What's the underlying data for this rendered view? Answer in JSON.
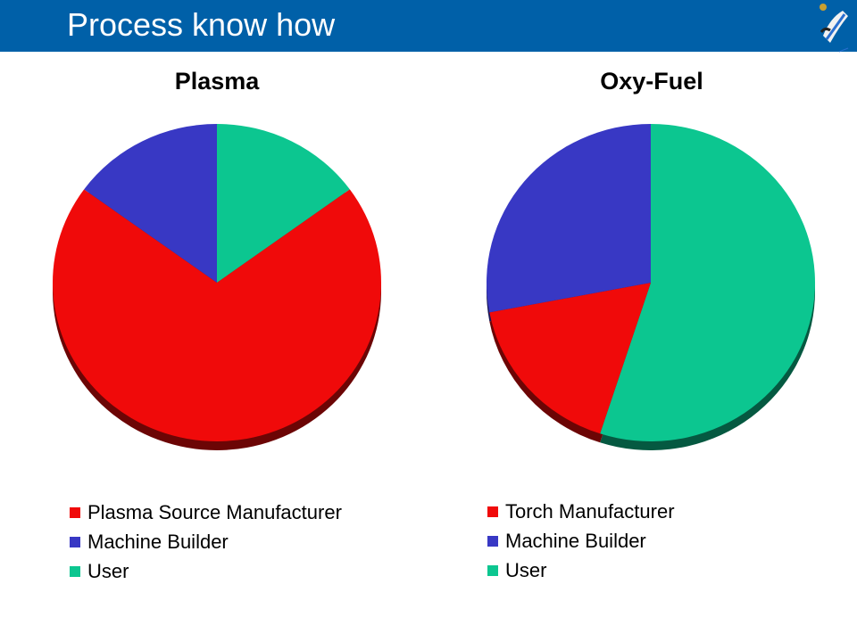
{
  "header": {
    "title": "Process know how",
    "logo": "welding-robot-logo"
  },
  "colors": {
    "header_bg": "#0060a8",
    "red": "#f00a0a",
    "blue": "#3838c4",
    "green": "#0cc690"
  },
  "chart_data": [
    {
      "type": "pie",
      "title": "Plasma",
      "categories": [
        "Plasma Source Manufacturer",
        "Machine Builder",
        "User"
      ],
      "values": [
        70,
        15,
        15
      ],
      "colors": [
        "#f00a0a",
        "#3838c4",
        "#0cc690"
      ],
      "legend_position": "bottom"
    },
    {
      "type": "pie",
      "title": "Oxy-Fuel",
      "categories": [
        "Torch Manufacturer",
        "Machine Builder",
        "User"
      ],
      "values": [
        17,
        28,
        55
      ],
      "colors": [
        "#f00a0a",
        "#3838c4",
        "#0cc690"
      ],
      "legend_position": "bottom"
    }
  ]
}
